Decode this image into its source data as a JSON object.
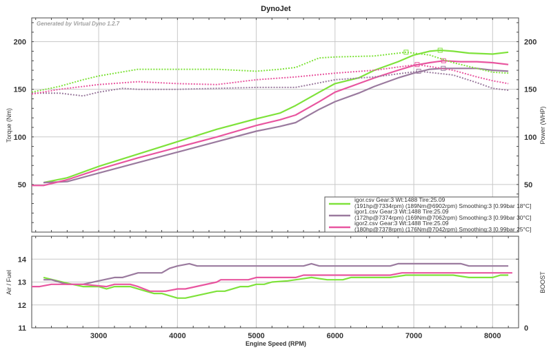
{
  "title": "DynoJet",
  "watermark": "Generated by Virtual Dyno 1.2.7",
  "colors": {
    "igor": "#7ee23a",
    "igor1": "#9a7a9e",
    "igor2": "#e8559f",
    "grid": "#c8c8c8",
    "axis": "#444444"
  },
  "chart_data": [
    {
      "type": "line",
      "title": "DynoJet",
      "xlabel": "Engine Speed (RPM)",
      "ylabel": "Torque (Nm)",
      "y2label": "Power (WHP)",
      "xlim": [
        2150,
        8330
      ],
      "ylim": [
        0,
        225
      ],
      "xticks": [
        3000,
        4000,
        5000,
        6000,
        7000,
        8000
      ],
      "xtick_labels": [
        "3000",
        "4000",
        "5000",
        "6000",
        "7000",
        "8000"
      ],
      "yticks": [
        50,
        100,
        150,
        200
      ],
      "ytick_labels": [
        "50",
        "100",
        "150",
        "200"
      ],
      "grid": true,
      "legend_position": "bottom-right",
      "series": [
        {
          "name": "igor power",
          "key": "igor",
          "style": "solid",
          "x": [
            2300,
            2600,
            3000,
            3500,
            4000,
            4500,
            5000,
            5300,
            5500,
            5800,
            6000,
            6300,
            6500,
            6800,
            7000,
            7200,
            7334,
            7500,
            7700,
            8000,
            8200
          ],
          "y": [
            52,
            57,
            69,
            82,
            95,
            108,
            119,
            125,
            133,
            147,
            156,
            162,
            170,
            179,
            186,
            190,
            191,
            190,
            188,
            187,
            189
          ],
          "peak": [
            7334,
            191
          ]
        },
        {
          "name": "igor1 power",
          "key": "igor1",
          "style": "solid",
          "x": [
            2300,
            2600,
            3000,
            3500,
            4000,
            4500,
            5000,
            5300,
            5500,
            5800,
            6000,
            6300,
            6500,
            6800,
            7000,
            7200,
            7374,
            7500,
            7800,
            8000,
            8200
          ],
          "y": [
            52,
            53,
            62,
            73,
            84,
            95,
            106,
            111,
            115,
            129,
            137,
            146,
            153,
            162,
            167,
            171,
            172,
            172,
            172,
            170,
            169
          ],
          "peak": [
            7374,
            172
          ]
        },
        {
          "name": "igor2 power",
          "key": "igor2",
          "style": "solid",
          "x": [
            2150,
            2300,
            2600,
            3000,
            3500,
            4000,
            4500,
            5000,
            5300,
            5500,
            5800,
            6000,
            6300,
            6500,
            6800,
            7000,
            7200,
            7378,
            7600,
            7800,
            8000,
            8200
          ],
          "y": [
            49,
            49,
            55,
            66,
            78,
            89,
            100,
            112,
            118,
            123,
            137,
            147,
            156,
            162,
            170,
            175,
            178,
            180,
            179,
            179,
            178,
            176
          ],
          "peak": [
            7378,
            180
          ]
        },
        {
          "name": "igor torque",
          "key": "igor",
          "style": "dotted",
          "x": [
            2150,
            2500,
            2800,
            3000,
            3500,
            4000,
            4500,
            5000,
            5300,
            5500,
            5800,
            6000,
            6500,
            6902,
            7200,
            7500,
            7800,
            8000,
            8200
          ],
          "y": [
            147,
            153,
            160,
            164,
            171,
            171,
            171,
            169,
            171,
            173,
            183,
            184,
            185,
            189,
            186,
            178,
            172,
            168,
            167
          ],
          "peak": [
            6902,
            189
          ]
        },
        {
          "name": "igor1 torque",
          "key": "igor1",
          "style": "dotted",
          "x": [
            2150,
            2500,
            2800,
            3000,
            3300,
            3500,
            4000,
            4500,
            5000,
            5500,
            6000,
            6500,
            7062,
            7500,
            7800,
            8000,
            8200
          ],
          "y": [
            146,
            146,
            143,
            147,
            151,
            150,
            150,
            151,
            152,
            152,
            160,
            163,
            169,
            165,
            157,
            151,
            149
          ],
          "peak": [
            7062,
            169
          ]
        },
        {
          "name": "igor2 torque",
          "key": "igor2",
          "style": "dotted",
          "x": [
            2150,
            2500,
            3000,
            3500,
            4000,
            4500,
            5000,
            5500,
            6000,
            6500,
            7042,
            7500,
            7800,
            8000,
            8200
          ],
          "y": [
            145,
            150,
            155,
            158,
            156,
            155,
            160,
            163,
            167,
            170,
            176,
            170,
            163,
            159,
            156
          ],
          "peak": [
            7042,
            176
          ]
        }
      ],
      "legend": [
        {
          "key": "igor",
          "line1": "igor.csv Gear:3 Wt:1488 Tire:25.09",
          "line2": "(191hp@7334rpm) (189Nm@6902rpm) Smoothing:3 [0.99bar 18°C]"
        },
        {
          "key": "igor1",
          "line1": "igor1.csv Gear:3 Wt:1488 Tire:25.09",
          "line2": "(172hp@7374rpm) (169Nm@7062rpm) Smoothing:3 [0.99bar 30°C]"
        },
        {
          "key": "igor2",
          "line1": "igor2.csv Gear:3 Wt:1488 Tire:25.09",
          "line2": "(180hp@7378rpm) (176Nm@7042rpm) Smoothing:3 [0.99bar 25°C]"
        }
      ]
    },
    {
      "type": "line",
      "xlabel": "Engine Speed (RPM)",
      "ylabel": "Air / Fuel",
      "y2label": "BOOST",
      "y2tick_labels": [
        "0"
      ],
      "xlim": [
        2150,
        8330
      ],
      "ylim": [
        11,
        15
      ],
      "yticks": [
        11,
        12,
        13,
        14
      ],
      "ytick_labels": [
        "11",
        "12",
        "13",
        "14"
      ],
      "grid": true,
      "series": [
        {
          "name": "igor AFR",
          "key": "igor",
          "x": [
            2300,
            2600,
            2800,
            3000,
            3100,
            3200,
            3400,
            3600,
            3700,
            3800,
            4000,
            4100,
            4300,
            4500,
            4600,
            4800,
            4900,
            5000,
            5100,
            5200,
            5400,
            5500,
            5700,
            5900,
            6100,
            6200,
            6700,
            6900,
            7500,
            7700,
            8000,
            8100,
            8200
          ],
          "y": [
            13.2,
            12.95,
            12.8,
            12.8,
            12.7,
            12.8,
            12.8,
            12.6,
            12.5,
            12.5,
            12.3,
            12.3,
            12.45,
            12.6,
            12.6,
            12.8,
            12.8,
            12.9,
            12.9,
            13.0,
            13.05,
            13.1,
            13.2,
            13.1,
            13.1,
            13.2,
            13.2,
            13.3,
            13.3,
            13.2,
            13.2,
            13.3,
            13.3
          ]
        },
        {
          "name": "igor1 AFR",
          "key": "igor1",
          "x": [
            2300,
            2400,
            2600,
            2800,
            3000,
            3200,
            3300,
            3500,
            3800,
            3900,
            4000,
            4150,
            4250,
            5600,
            5700,
            5800,
            6700,
            6800,
            7600,
            7700,
            8200
          ],
          "y": [
            13.1,
            13.1,
            12.9,
            12.9,
            13.05,
            13.2,
            13.2,
            13.4,
            13.4,
            13.6,
            13.7,
            13.8,
            13.7,
            13.7,
            13.8,
            13.7,
            13.7,
            13.8,
            13.8,
            13.7,
            13.7
          ]
        },
        {
          "name": "igor2 AFR",
          "key": "igor2",
          "x": [
            2150,
            2250,
            2400,
            2800,
            3100,
            3200,
            3400,
            3500,
            3650,
            3850,
            4000,
            4100,
            4300,
            4500,
            4550,
            4900,
            5000,
            5500,
            5600,
            6700,
            6850,
            8250
          ],
          "y": [
            12.8,
            12.8,
            12.9,
            12.9,
            12.8,
            12.9,
            12.9,
            12.8,
            12.6,
            12.6,
            12.7,
            12.7,
            12.85,
            13.0,
            13.1,
            13.1,
            13.2,
            13.2,
            13.3,
            13.3,
            13.4,
            13.4
          ]
        }
      ]
    }
  ]
}
